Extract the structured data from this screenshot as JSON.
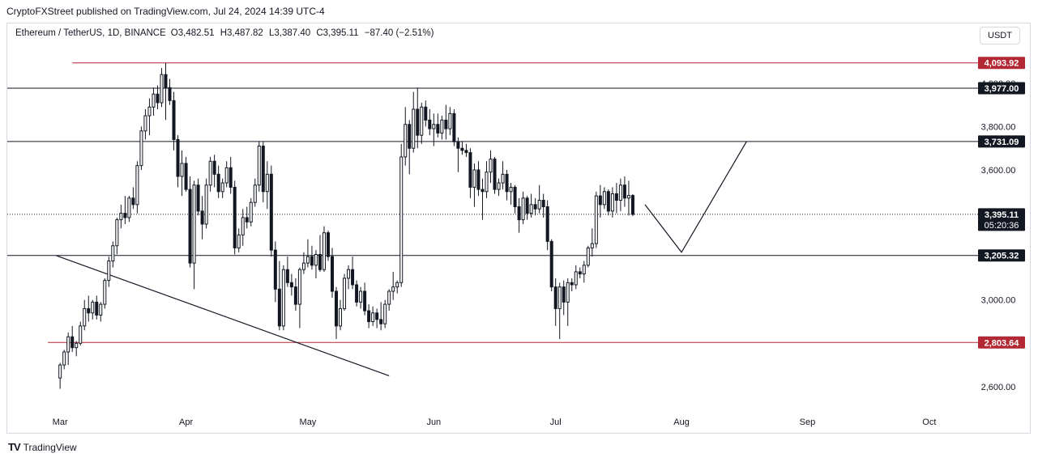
{
  "header": {
    "publisher_line": "CryptoFXStreet published on TradingView.com, Jul 24, 2024 14:39 UTC-4"
  },
  "legend": {
    "symbol": "Ethereum / TetherUS, 1D, BINANCE",
    "open": "O3,482.51",
    "high": "H3,487.82",
    "low": "L3,387.40",
    "close": "C3,395.11",
    "change": "−87.40 (−2.51%)"
  },
  "currency_button": "USDT",
  "footer": {
    "brand": "TradingView",
    "logo": "TV"
  },
  "colors": {
    "black": "#131722",
    "red_level": "#b22833",
    "grid_axis": "#131722"
  },
  "chart_data": {
    "type": "candlestick",
    "ylim": [
      2480,
      4160
    ],
    "x_range_days": [
      -13,
      226
    ],
    "x_ticks": [
      {
        "label": "Mar",
        "day": 0
      },
      {
        "label": "Apr",
        "day": 31
      },
      {
        "label": "May",
        "day": 61
      },
      {
        "label": "Jun",
        "day": 92
      },
      {
        "label": "Jul",
        "day": 122
      },
      {
        "label": "Aug",
        "day": 153
      },
      {
        "label": "Sep",
        "day": 184
      },
      {
        "label": "Oct",
        "day": 214
      }
    ],
    "y_ticks": [
      "4,000.00",
      "3,800.00",
      "3,600.00",
      "3,000.00",
      "2,600.00"
    ],
    "y_tick_values": [
      4000,
      3800,
      3600,
      3000,
      2600
    ],
    "price_labels": [
      {
        "text": "4,093.92",
        "value": 4093.92,
        "style": "red"
      },
      {
        "text": "3,977.00",
        "value": 3977.0,
        "style": "black"
      },
      {
        "text": "3,731.09",
        "value": 3731.09,
        "style": "black"
      },
      {
        "text": "3,395.11",
        "value": 3395.11,
        "style": "black",
        "subtext": "05:20:36"
      },
      {
        "text": "3,205.32",
        "value": 3205.32,
        "style": "black"
      },
      {
        "text": "2,803.64",
        "value": 2803.64,
        "style": "red"
      }
    ],
    "levels": [
      {
        "value": 4093.92,
        "style": "red",
        "from_day": 3
      },
      {
        "value": 3977.0,
        "style": "black",
        "from_day": -13
      },
      {
        "value": 3731.09,
        "style": "black",
        "from_day": -13
      },
      {
        "value": 3205.32,
        "style": "black",
        "from_day": -13
      },
      {
        "value": 2803.64,
        "style": "red",
        "from_day": -3
      },
      {
        "value": 3395.11,
        "style": "dotted",
        "from_day": -13
      }
    ],
    "trendlines": [
      {
        "points": [
          [
            -1,
            3205
          ],
          [
            81,
            2650
          ]
        ]
      }
    ],
    "projection": [
      [
        144,
        3440
      ],
      [
        153,
        3220
      ],
      [
        169,
        3731
      ]
    ],
    "ohlc_keys": [
      "open",
      "high",
      "low",
      "close"
    ],
    "candles": [
      [
        2640,
        2710,
        2590,
        2700
      ],
      [
        2700,
        2770,
        2680,
        2760
      ],
      [
        2760,
        2850,
        2700,
        2830
      ],
      [
        2830,
        2880,
        2760,
        2780
      ],
      [
        2780,
        2810,
        2740,
        2800
      ],
      [
        2800,
        2900,
        2790,
        2880
      ],
      [
        2880,
        3000,
        2860,
        2960
      ],
      [
        2960,
        3020,
        2900,
        2940
      ],
      [
        2940,
        3000,
        2910,
        2990
      ],
      [
        2990,
        3020,
        2910,
        2930
      ],
      [
        2930,
        2990,
        2900,
        2980
      ],
      [
        2980,
        3100,
        2960,
        3090
      ],
      [
        3090,
        3200,
        3060,
        3180
      ],
      [
        3180,
        3270,
        3150,
        3250
      ],
      [
        3250,
        3380,
        3210,
        3370
      ],
      [
        3370,
        3440,
        3330,
        3400
      ],
      [
        3400,
        3480,
        3350,
        3380
      ],
      [
        3380,
        3480,
        3360,
        3470
      ],
      [
        3470,
        3520,
        3420,
        3440
      ],
      [
        3440,
        3640,
        3400,
        3620
      ],
      [
        3620,
        3800,
        3600,
        3780
      ],
      [
        3780,
        3880,
        3740,
        3850
      ],
      [
        3850,
        3930,
        3760,
        3890
      ],
      [
        3890,
        3980,
        3850,
        3950
      ],
      [
        3950,
        3990,
        3880,
        3910
      ],
      [
        3910,
        4070,
        3890,
        4040
      ],
      [
        4040,
        4094,
        3830,
        3980
      ],
      [
        3980,
        4020,
        3900,
        3920
      ],
      [
        3920,
        3960,
        3690,
        3740
      ],
      [
        3740,
        3760,
        3520,
        3570
      ],
      [
        3570,
        3690,
        3480,
        3630
      ],
      [
        3630,
        3660,
        3500,
        3510
      ],
      [
        3510,
        3570,
        3150,
        3170
      ],
      [
        3170,
        3550,
        3050,
        3530
      ],
      [
        3530,
        3560,
        3390,
        3410
      ],
      [
        3410,
        3480,
        3280,
        3350
      ],
      [
        3350,
        3560,
        3330,
        3530
      ],
      [
        3530,
        3660,
        3500,
        3640
      ],
      [
        3640,
        3670,
        3520,
        3580
      ],
      [
        3580,
        3620,
        3470,
        3500
      ],
      [
        3500,
        3560,
        3470,
        3540
      ],
      [
        3540,
        3640,
        3520,
        3610
      ],
      [
        3610,
        3660,
        3490,
        3520
      ],
      [
        3520,
        3550,
        3210,
        3240
      ],
      [
        3240,
        3330,
        3220,
        3300
      ],
      [
        3300,
        3420,
        3250,
        3380
      ],
      [
        3380,
        3430,
        3330,
        3360
      ],
      [
        3360,
        3470,
        3340,
        3450
      ],
      [
        3450,
        3560,
        3430,
        3530
      ],
      [
        3530,
        3730,
        3500,
        3710
      ],
      [
        3710,
        3730,
        3450,
        3500
      ],
      [
        3500,
        3640,
        3420,
        3580
      ],
      [
        3580,
        3620,
        3200,
        3230
      ],
      [
        3230,
        3270,
        2990,
        3050
      ],
      [
        3050,
        3180,
        2860,
        2880
      ],
      [
        2880,
        3160,
        2860,
        3140
      ],
      [
        3140,
        3200,
        3060,
        3080
      ],
      [
        3080,
        3120,
        3020,
        3060
      ],
      [
        3060,
        3100,
        2950,
        2980
      ],
      [
        2980,
        3150,
        2870,
        3140
      ],
      [
        3140,
        3220,
        3120,
        3170
      ],
      [
        3170,
        3280,
        3150,
        3200
      ],
      [
        3200,
        3250,
        3140,
        3160
      ],
      [
        3160,
        3230,
        3100,
        3210
      ],
      [
        3210,
        3300,
        3130,
        3140
      ],
      [
        3140,
        3340,
        3130,
        3310
      ],
      [
        3310,
        3320,
        3180,
        3200
      ],
      [
        3200,
        3240,
        3010,
        3040
      ],
      [
        3040,
        3060,
        2820,
        2880
      ],
      [
        2880,
        3000,
        2860,
        2960
      ],
      [
        2960,
        3120,
        2950,
        3100
      ],
      [
        3100,
        3160,
        3050,
        3140
      ],
      [
        3140,
        3200,
        3050,
        3070
      ],
      [
        3070,
        3090,
        2970,
        2990
      ],
      [
        2990,
        3060,
        2960,
        3040
      ],
      [
        3040,
        3080,
        2930,
        2950
      ],
      [
        2950,
        2980,
        2870,
        2900
      ],
      [
        2900,
        2970,
        2880,
        2940
      ],
      [
        2940,
        2960,
        2870,
        2910
      ],
      [
        2910,
        2990,
        2860,
        2890
      ],
      [
        2890,
        3000,
        2870,
        2980
      ],
      [
        2980,
        3050,
        2950,
        3040
      ],
      [
        3040,
        3130,
        3000,
        3060
      ],
      [
        3060,
        3090,
        3030,
        3080
      ],
      [
        3080,
        3720,
        3060,
        3660
      ],
      [
        3660,
        3890,
        3620,
        3810
      ],
      [
        3810,
        3830,
        3580,
        3700
      ],
      [
        3700,
        3960,
        3680,
        3880
      ],
      [
        3880,
        3980,
        3700,
        3760
      ],
      [
        3760,
        3910,
        3720,
        3890
      ],
      [
        3890,
        3920,
        3800,
        3830
      ],
      [
        3830,
        3880,
        3760,
        3790
      ],
      [
        3790,
        3860,
        3710,
        3810
      ],
      [
        3810,
        3860,
        3750,
        3770
      ],
      [
        3770,
        3850,
        3740,
        3830
      ],
      [
        3830,
        3900,
        3740,
        3790
      ],
      [
        3790,
        3890,
        3760,
        3860
      ],
      [
        3860,
        3880,
        3710,
        3730
      ],
      [
        3730,
        3750,
        3590,
        3700
      ],
      [
        3700,
        3730,
        3670,
        3690
      ],
      [
        3690,
        3720,
        3660,
        3680
      ],
      [
        3680,
        3700,
        3470,
        3520
      ],
      [
        3520,
        3630,
        3430,
        3600
      ],
      [
        3600,
        3640,
        3480,
        3510
      ],
      [
        3510,
        3560,
        3370,
        3500
      ],
      [
        3500,
        3640,
        3470,
        3590
      ],
      [
        3590,
        3690,
        3540,
        3650
      ],
      [
        3650,
        3660,
        3490,
        3510
      ],
      [
        3510,
        3560,
        3480,
        3540
      ],
      [
        3540,
        3640,
        3510,
        3580
      ],
      [
        3580,
        3600,
        3460,
        3500
      ],
      [
        3500,
        3540,
        3440,
        3520
      ],
      [
        3520,
        3530,
        3400,
        3430
      ],
      [
        3430,
        3470,
        3310,
        3370
      ],
      [
        3370,
        3500,
        3350,
        3470
      ],
      [
        3470,
        3480,
        3370,
        3400
      ],
      [
        3400,
        3490,
        3380,
        3440
      ],
      [
        3440,
        3470,
        3390,
        3420
      ],
      [
        3420,
        3530,
        3400,
        3460
      ],
      [
        3460,
        3490,
        3380,
        3430
      ],
      [
        3430,
        3460,
        3230,
        3270
      ],
      [
        3270,
        3280,
        3040,
        3060
      ],
      [
        3060,
        3100,
        2880,
        2960
      ],
      [
        2960,
        3080,
        2820,
        3060
      ],
      [
        3060,
        3090,
        2930,
        2990
      ],
      [
        2990,
        3100,
        2880,
        3080
      ],
      [
        3080,
        3100,
        3040,
        3070
      ],
      [
        3070,
        3160,
        3050,
        3130
      ],
      [
        3130,
        3150,
        3100,
        3120
      ],
      [
        3120,
        3180,
        3080,
        3160
      ],
      [
        3160,
        3250,
        3150,
        3240
      ],
      [
        3240,
        3330,
        3200,
        3260
      ],
      [
        3260,
        3500,
        3240,
        3480
      ],
      [
        3480,
        3530,
        3380,
        3440
      ],
      [
        3440,
        3520,
        3420,
        3500
      ],
      [
        3500,
        3510,
        3390,
        3410
      ],
      [
        3410,
        3520,
        3380,
        3490
      ],
      [
        3490,
        3540,
        3400,
        3460
      ],
      [
        3460,
        3560,
        3410,
        3530
      ],
      [
        3530,
        3570,
        3430,
        3470
      ],
      [
        3470,
        3550,
        3390,
        3482
      ],
      [
        3482,
        3488,
        3387,
        3395
      ]
    ]
  }
}
